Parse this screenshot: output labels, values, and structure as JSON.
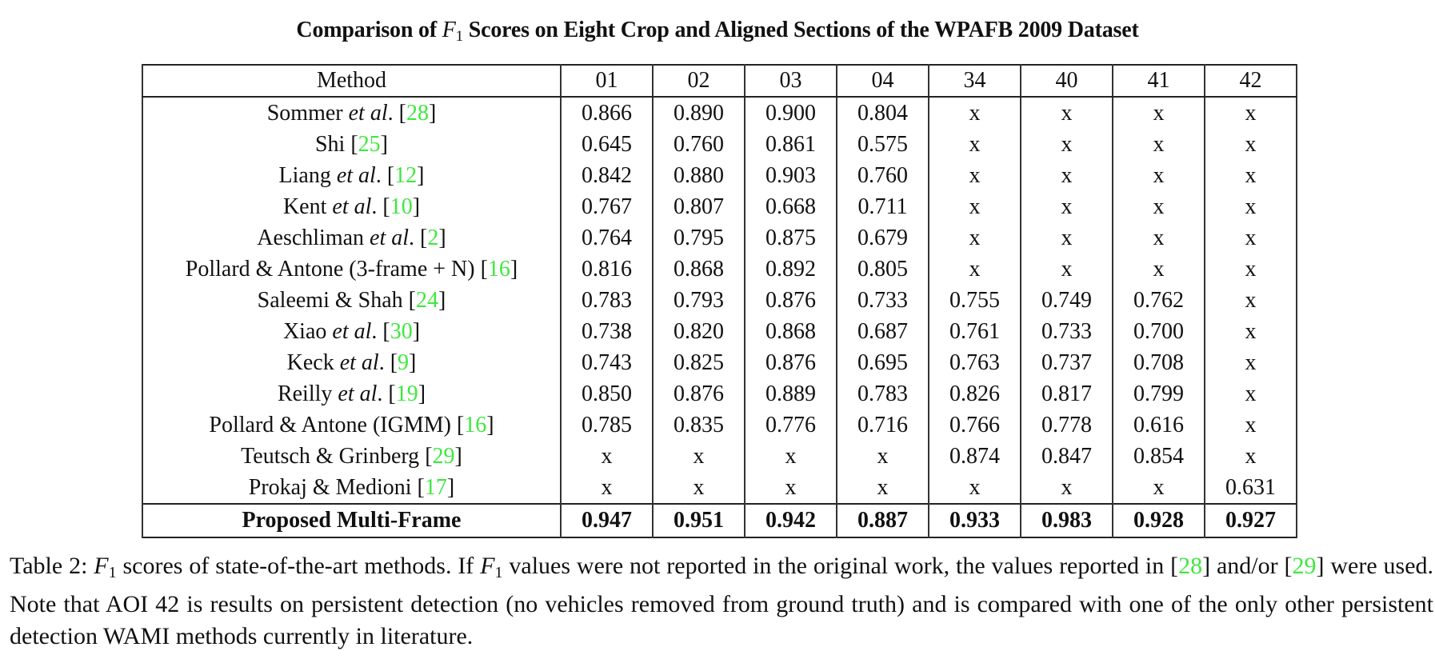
{
  "title": {
    "prefix": "Comparison of ",
    "math_var": "F",
    "math_sub": "1",
    "suffix": " Scores on Eight Crop and Aligned Sections of the WPAFB 2009 Dataset"
  },
  "table": {
    "headers": [
      "Method",
      "01",
      "02",
      "03",
      "04",
      "34",
      "40",
      "41",
      "42"
    ],
    "rows": [
      {
        "name": "Sommer",
        "etal": "et al",
        "dot": ".",
        "ref": "28",
        "values": [
          "0.866",
          "0.890",
          "0.900",
          "0.804",
          "x",
          "x",
          "x",
          "x"
        ]
      },
      {
        "name": "Shi",
        "etal": "",
        "dot": "",
        "ref": "25",
        "values": [
          "0.645",
          "0.760",
          "0.861",
          "0.575",
          "x",
          "x",
          "x",
          "x"
        ]
      },
      {
        "name": "Liang",
        "etal": "et al",
        "dot": ".",
        "ref": "12",
        "values": [
          "0.842",
          "0.880",
          "0.903",
          "0.760",
          "x",
          "x",
          "x",
          "x"
        ]
      },
      {
        "name": "Kent",
        "etal": "et al",
        "dot": ".",
        "ref": "10",
        "values": [
          "0.767",
          "0.807",
          "0.668",
          "0.711",
          "x",
          "x",
          "x",
          "x"
        ]
      },
      {
        "name": "Aeschliman",
        "etal": "et al",
        "dot": ".",
        "ref": "2",
        "values": [
          "0.764",
          "0.795",
          "0.875",
          "0.679",
          "x",
          "x",
          "x",
          "x"
        ]
      },
      {
        "name": "Pollard & Antone (3-frame + N)",
        "etal": "",
        "dot": "",
        "ref": "16",
        "values": [
          "0.816",
          "0.868",
          "0.892",
          "0.805",
          "x",
          "x",
          "x",
          "x"
        ]
      },
      {
        "name": "Saleemi & Shah",
        "etal": "",
        "dot": "",
        "ref": "24",
        "values": [
          "0.783",
          "0.793",
          "0.876",
          "0.733",
          "0.755",
          "0.749",
          "0.762",
          "x"
        ]
      },
      {
        "name": "Xiao",
        "etal": "et al",
        "dot": ".",
        "ref": "30",
        "values": [
          "0.738",
          "0.820",
          "0.868",
          "0.687",
          "0.761",
          "0.733",
          "0.700",
          "x"
        ]
      },
      {
        "name": "Keck",
        "etal": "et al",
        "dot": ".",
        "ref": "9",
        "values": [
          "0.743",
          "0.825",
          "0.876",
          "0.695",
          "0.763",
          "0.737",
          "0.708",
          "x"
        ]
      },
      {
        "name": "Reilly",
        "etal": "et al",
        "dot": ".",
        "ref": "19",
        "values": [
          "0.850",
          "0.876",
          "0.889",
          "0.783",
          "0.826",
          "0.817",
          "0.799",
          "x"
        ]
      },
      {
        "name": "Pollard & Antone (IGMM)",
        "etal": "",
        "dot": "",
        "ref": "16",
        "values": [
          "0.785",
          "0.835",
          "0.776",
          "0.716",
          "0.766",
          "0.778",
          "0.616",
          "x"
        ]
      },
      {
        "name": "Teutsch & Grinberg",
        "etal": "",
        "dot": "",
        "ref": "29",
        "values": [
          "x",
          "x",
          "x",
          "x",
          "0.874",
          "0.847",
          "0.854",
          "x"
        ]
      },
      {
        "name": "Prokaj & Medioni",
        "etal": "",
        "dot": "",
        "ref": "17",
        "values": [
          "x",
          "x",
          "x",
          "x",
          "x",
          "x",
          "x",
          "0.631"
        ]
      }
    ],
    "proposed": {
      "name": "Proposed Multi-Frame",
      "values": [
        "0.947",
        "0.951",
        "0.942",
        "0.887",
        "0.933",
        "0.983",
        "0.928",
        "0.927"
      ]
    }
  },
  "caption": {
    "label": "Table 2: ",
    "math_var": "F",
    "math_sub": "1",
    "part1": " scores of state-of-the-art methods. If ",
    "part2": " values were not reported in the original work, the values reported in ",
    "ref1": "28",
    "part3": " and/or ",
    "ref2": "29",
    "part4": " were used. Note that AOI 42 is results on persistent detection (no vehicles removed from ground truth) and is compared with one of the only other persistent detection WAMI methods currently in literature."
  },
  "colors": {
    "reference_link": "#3ee83e",
    "text": "#111111",
    "rule": "#222222"
  }
}
